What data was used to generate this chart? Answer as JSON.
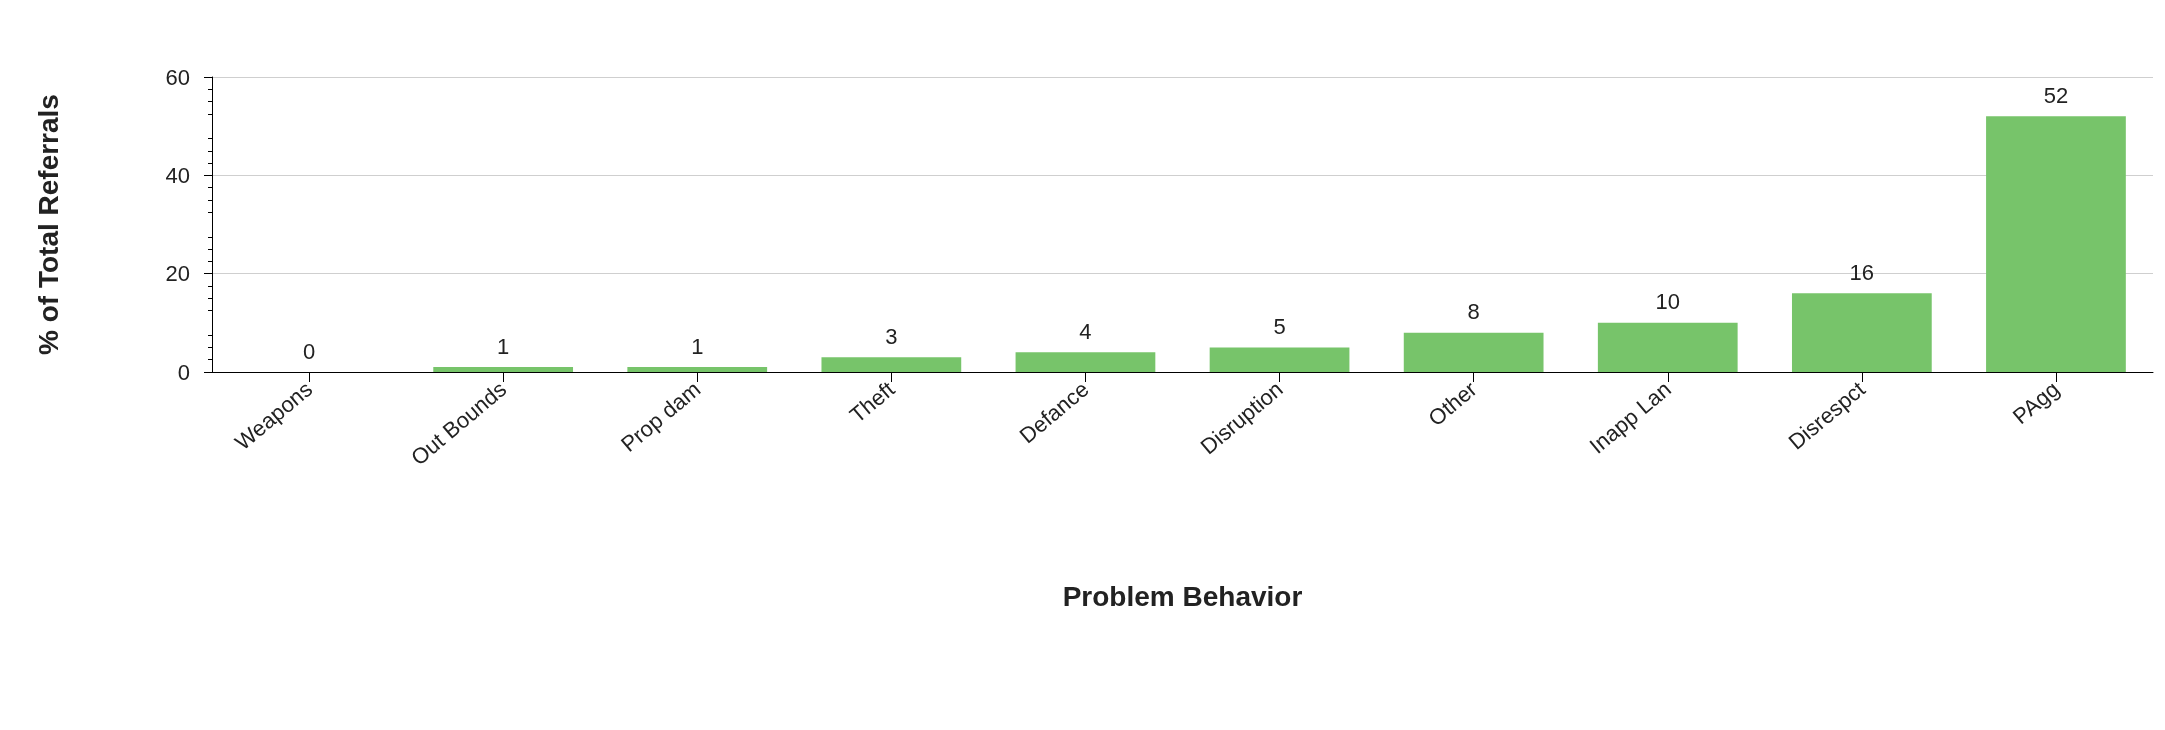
{
  "chart_data": {
    "type": "bar",
    "xlabel": "Problem Behavior",
    "ylabel": "% of Total Referrals",
    "categories": [
      "Weapons",
      "Out Bounds",
      "Prop dam",
      "Theft",
      "Defance",
      "Disruption",
      "Other",
      "Inapp Lan",
      "Disrespct",
      "PAgg"
    ],
    "values": [
      0,
      1,
      1,
      3,
      4,
      5,
      8,
      10,
      16,
      52
    ],
    "color": "#77c46a",
    "ylim": [
      0,
      60
    ],
    "yticks": [
      0,
      20,
      40,
      60
    ],
    "grid": "y",
    "data_labels": true
  }
}
